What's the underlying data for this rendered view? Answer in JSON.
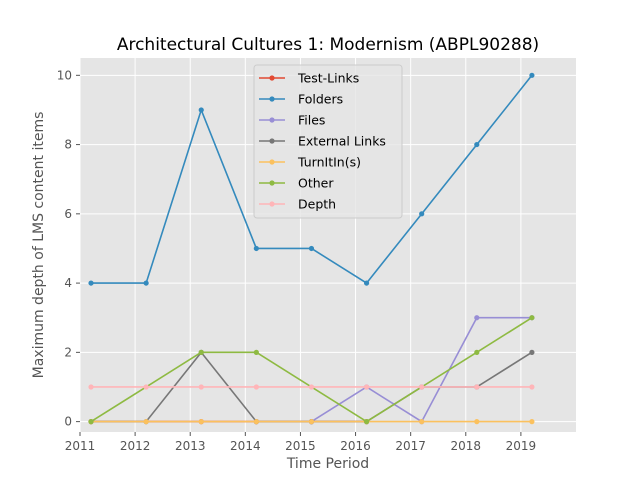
{
  "chart_data": {
    "type": "line",
    "title": "Architectural Cultures 1: Modernism (ABPL90288)",
    "xlabel": "Time Period",
    "ylabel": "Maximum depth of LMS content items",
    "xlim": [
      2011,
      2020
    ],
    "ylim": [
      -0.3,
      10.5
    ],
    "x_ticks": [
      2011,
      2012,
      2013,
      2014,
      2015,
      2016,
      2017,
      2018,
      2019
    ],
    "y_ticks": [
      0,
      2,
      4,
      6,
      8,
      10
    ],
    "grid": true,
    "legend_position": "top-center",
    "series": [
      {
        "name": "Test-Links",
        "color": "#E24A33",
        "x": [
          2011.2,
          2013.2,
          2014.2,
          2015.2,
          2016.2
        ],
        "y": [
          0,
          0,
          0,
          0,
          0
        ]
      },
      {
        "name": "Folders",
        "color": "#348ABD",
        "x": [
          2011.2,
          2012.2,
          2013.2,
          2014.2,
          2015.2,
          2016.2,
          2017.2,
          2018.2,
          2019.2
        ],
        "y": [
          4,
          4,
          9,
          5,
          5,
          4,
          6,
          8,
          10
        ]
      },
      {
        "name": "Files",
        "color": "#988ED5",
        "x": [
          2015.2,
          2016.2,
          2017.2,
          2018.2,
          2019.2
        ],
        "y": [
          0,
          1,
          0,
          3,
          3
        ]
      },
      {
        "name": "External Links",
        "color": "#777777",
        "x": [
          2011.2,
          2012.2,
          2013.2,
          2014.2,
          2015.2,
          2016.2,
          2017.2,
          2018.2,
          2019.2
        ],
        "y": [
          0,
          0,
          2,
          0,
          0,
          0,
          1,
          1,
          2
        ]
      },
      {
        "name": "TurnItIn(s)",
        "color": "#FBC15E",
        "x": [
          2011.2,
          2012.2,
          2013.2,
          2014.2,
          2015.2,
          2016.2,
          2017.2,
          2018.2,
          2019.2
        ],
        "y": [
          0,
          0,
          0,
          0,
          0,
          0,
          0,
          0,
          0
        ]
      },
      {
        "name": "Other",
        "color": "#8EBA42",
        "x": [
          2011.2,
          2013.2,
          2014.2,
          2016.2,
          2018.2,
          2019.2
        ],
        "y": [
          0,
          2,
          2,
          0,
          2,
          3
        ]
      },
      {
        "name": "Depth",
        "color": "#FFB5B8",
        "x": [
          2011.2,
          2012.2,
          2013.2,
          2014.2,
          2015.2,
          2016.2,
          2017.2,
          2018.2,
          2019.2
        ],
        "y": [
          1,
          1,
          1,
          1,
          1,
          1,
          1,
          1,
          1
        ]
      }
    ]
  }
}
